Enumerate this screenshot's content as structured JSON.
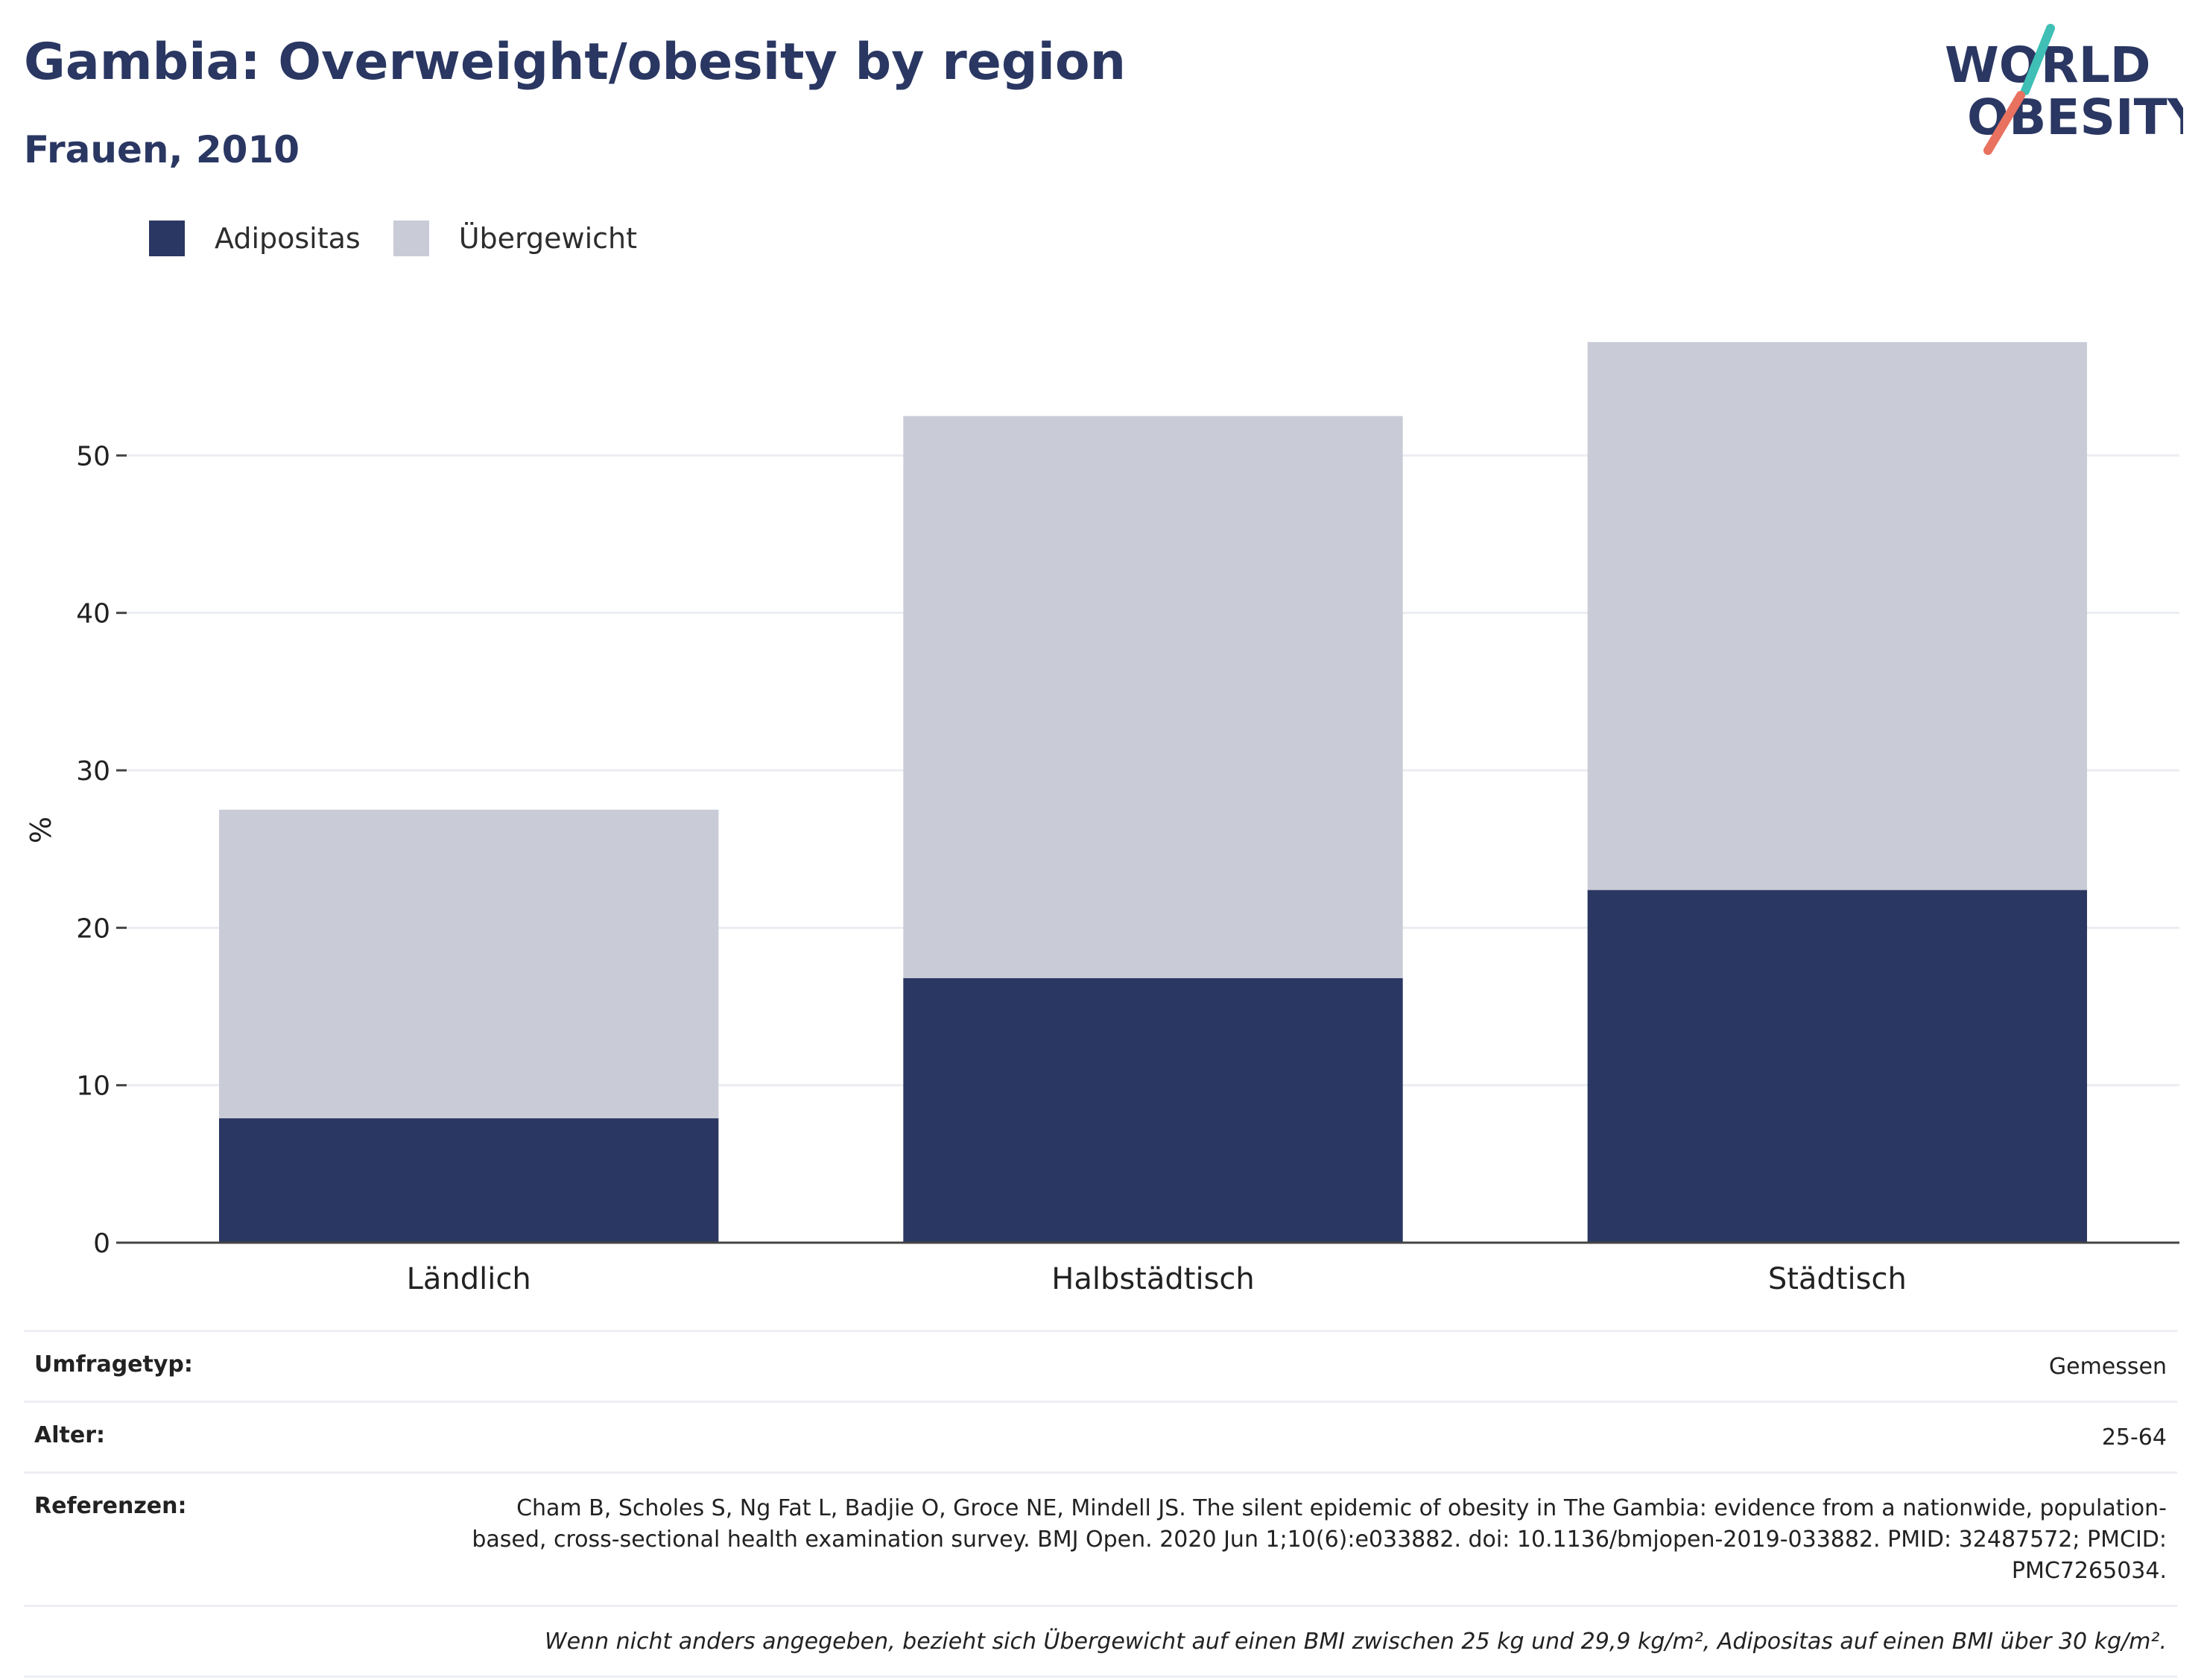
{
  "header": {
    "title": "Gambia: Overweight/obesity by region",
    "subtitle": "Frauen, 2010"
  },
  "logo": {
    "line1": "WORLD",
    "line2": "OBESITY"
  },
  "colors": {
    "obesity": "#2a3762",
    "overweight": "#c9cbd7",
    "text_dark": "#2a3762",
    "logo_teal": "#3fbfb5",
    "logo_coral": "#e8725f"
  },
  "legend": [
    {
      "label": "Adipositas",
      "color": "#2a3762"
    },
    {
      "label": "Übergewicht",
      "color": "#c9cbd7"
    }
  ],
  "chart_data": {
    "type": "bar",
    "stacked": true,
    "categories": [
      "Ländlich",
      "Halbstädtisch",
      "Städtisch"
    ],
    "series": [
      {
        "name": "Adipositas",
        "values": [
          7.9,
          16.8,
          22.4
        ]
      },
      {
        "name": "Übergewicht",
        "values": [
          19.6,
          35.7,
          34.8
        ]
      }
    ],
    "ylabel": "%",
    "ylim": [
      0,
      60
    ],
    "yticks": [
      0,
      10,
      20,
      30,
      40,
      50
    ],
    "grid": true,
    "legend_position": "top-left"
  },
  "meta": {
    "survey_type_label": "Umfragetyp:",
    "survey_type_value": "Gemessen",
    "age_label": "Alter:",
    "age_value": "25-64",
    "references_label": "Referenzen:",
    "references_value": "Cham B, Scholes S, Ng Fat L, Badjie O, Groce NE, Mindell JS. The silent epidemic of obesity in The Gambia: evidence from a nationwide, population-based, cross-sectional health examination survey. BMJ Open. 2020 Jun 1;10(6):e033882. doi: 10.1136/bmjopen-2019-033882. PMID: 32487572; PMCID: PMC7265034.",
    "note": "Wenn nicht anders angegeben, bezieht sich Übergewicht auf einen BMI zwischen 25 kg und 29,9 kg/m², Adipositas auf einen BMI über 30 kg/m²."
  }
}
